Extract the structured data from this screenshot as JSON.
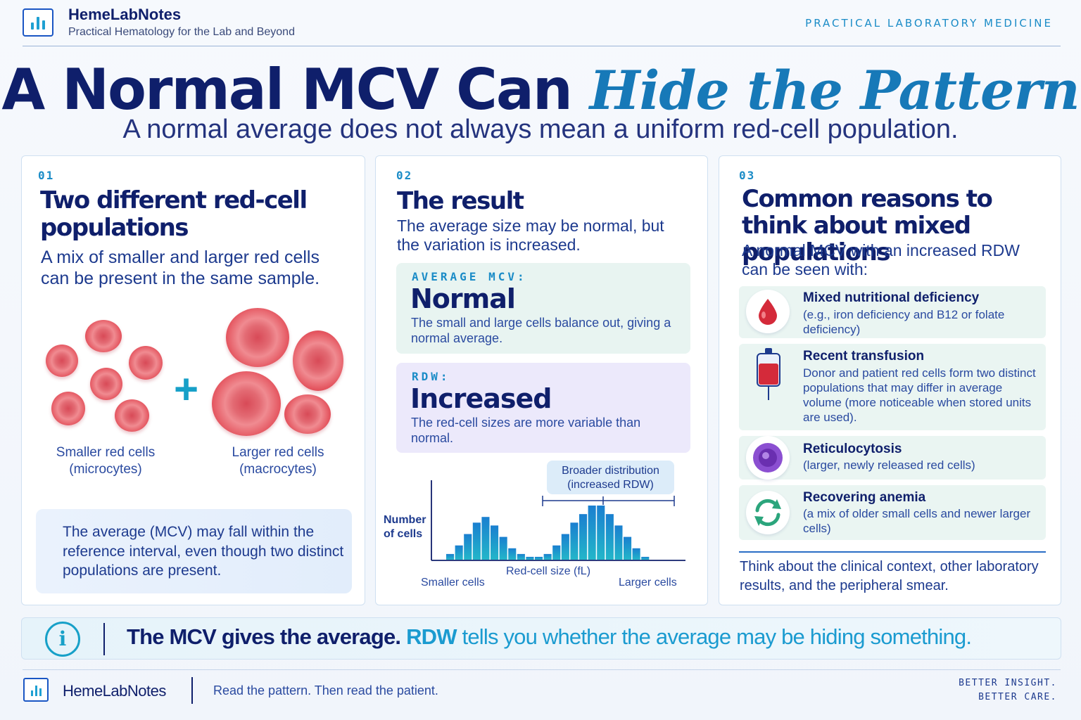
{
  "header": {
    "brand": "HemeLabNotes",
    "tagline": "Practical Hematology for the Lab and Beyond",
    "kicker": "PRACTICAL LABORATORY MEDICINE"
  },
  "title": {
    "part1": "A Normal MCV Can ",
    "part2": "Hide the Pattern",
    "subtitle": "A normal average does not always mean a uniform red-cell population."
  },
  "panel1": {
    "num": "01",
    "heading": "Two different red-cell populations",
    "text": "A mix of smaller and larger red cells can be present in the same sample.",
    "plus": "+",
    "caption_small_1": "Smaller red cells",
    "caption_small_2": "(microcytes)",
    "caption_large_1": "Larger red cells",
    "caption_large_2": "(macrocytes)",
    "note": "The average (MCV) may fall within the reference interval, even though two distinct populations are present."
  },
  "panel2": {
    "num": "02",
    "heading": "The result",
    "text": "The average size may be normal, but the variation is increased.",
    "mcv_label": "AVERAGE MCV:",
    "mcv_value": "Normal",
    "mcv_desc": "The small and large cells balance out, giving a normal average.",
    "rdw_label": "RDW:",
    "rdw_value": "Increased",
    "rdw_desc": "The red-cell sizes are more variable than normal."
  },
  "chart_data": {
    "type": "bar",
    "ylabel": "Number of cells",
    "xlabel": "Red-cell size (fL)",
    "x_left_label": "Smaller cells",
    "x_right_label": "Larger cells",
    "annotation": "Broader distribution (increased RDW)",
    "values": [
      2,
      5,
      9,
      13,
      15,
      12,
      8,
      4,
      2,
      1,
      1,
      2,
      5,
      9,
      13,
      16,
      19,
      19,
      16,
      12,
      8,
      4,
      1
    ],
    "y_axis_ticks": "none",
    "grid": false
  },
  "panel3": {
    "num": "03",
    "heading": "Common reasons to think about mixed populations",
    "text": "A normal MCV with an increased RDW can be seen with:",
    "reasons": [
      {
        "title": "Mixed nutritional deficiency",
        "desc": "(e.g., iron deficiency and B12 or folate deficiency)",
        "icon": "blood-drop-icon"
      },
      {
        "title": "Recent transfusion",
        "desc": "Donor and patient red cells form two distinct populations that may differ in average volume (more noticeable when stored units are used).",
        "icon": "blood-bag-icon"
      },
      {
        "title": "Reticulocytosis",
        "desc": "(larger, newly released red cells)",
        "icon": "reticulocyte-icon"
      },
      {
        "title": "Recovering anemia",
        "desc": "(a mix of older small cells and newer larger cells)",
        "icon": "recycle-arrows-icon"
      }
    ],
    "footer": "Think about the clinical context, other laboratory results, and the peripheral smear."
  },
  "banner": {
    "icon": "i",
    "part1": "The MCV gives the average.",
    "part2_bold": "RDW",
    "part2": " tells you whether the average may be hiding something."
  },
  "footer": {
    "brand": "HemeLabNotes",
    "tagline": "Read the pattern. Then read the patient.",
    "right_1": "BETTER INSIGHT.",
    "right_2": "BETTER CARE."
  },
  "colors": {
    "navy": "#0f1f6b",
    "accent": "#1b8cc7",
    "cell_red": "#e4555f",
    "bar_blue": "#1b9bd0"
  }
}
